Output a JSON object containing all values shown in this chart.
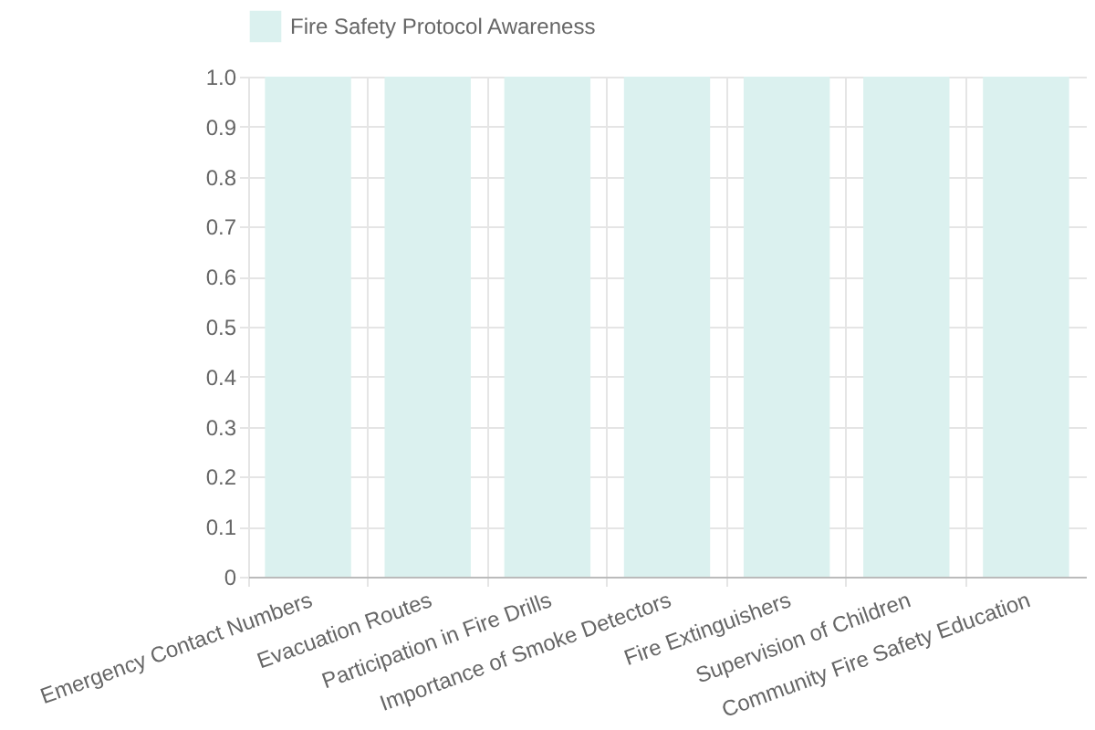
{
  "chart_data": {
    "type": "bar",
    "categories": [
      "Emergency Contact Numbers",
      "Evacuation Routes",
      "Participation in Fire Drills",
      "Importance of Smoke Detectors",
      "Fire Extinguishers",
      "Supervision of Children",
      "Community Fire Safety Education"
    ],
    "series": [
      {
        "name": "Fire Safety Protocol Awareness",
        "color": "#dbf1ef",
        "values": [
          1,
          1,
          1,
          1,
          1,
          1,
          1
        ]
      }
    ],
    "ylim": [
      0,
      1
    ],
    "yticks": [
      0,
      0.1,
      0.2,
      0.3,
      0.4,
      0.5,
      0.6,
      0.7,
      0.8,
      0.9,
      {
        "value": 1,
        "label": "1.0"
      }
    ],
    "grid": true,
    "legend": "top"
  }
}
